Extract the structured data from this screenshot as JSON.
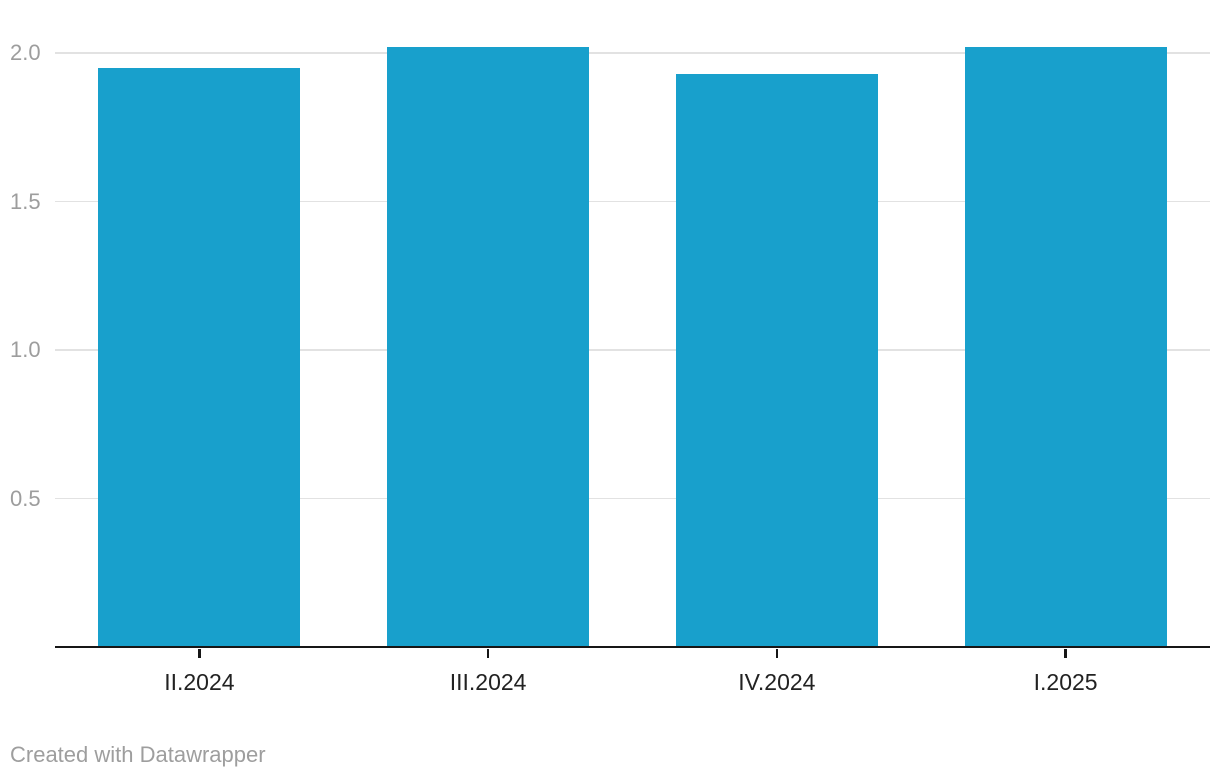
{
  "chart_data": {
    "type": "bar",
    "categories": [
      "II.2024",
      "III.2024",
      "IV.2024",
      "I.2025"
    ],
    "values": [
      1.95,
      2.02,
      1.93,
      2.02
    ],
    "title": "",
    "xlabel": "",
    "ylabel": "",
    "ylim": [
      0,
      2.18
    ],
    "yticks": [
      0.5,
      1.0,
      1.5,
      2.0
    ],
    "ytick_labels": [
      "0.5",
      "1.0",
      "1.5",
      "2.0"
    ],
    "grid": true,
    "legend": false,
    "bar_color": "#18a0cc"
  },
  "footer": {
    "attribution": "Created with Datawrapper"
  },
  "colors": {
    "bar": "#18a0cc",
    "gridline": "#e2e2e2",
    "axis": "#161616",
    "x_label": "#222222",
    "y_label": "#9d9d9d",
    "footer_text": "#9e9e9e",
    "background": "#ffffff"
  }
}
